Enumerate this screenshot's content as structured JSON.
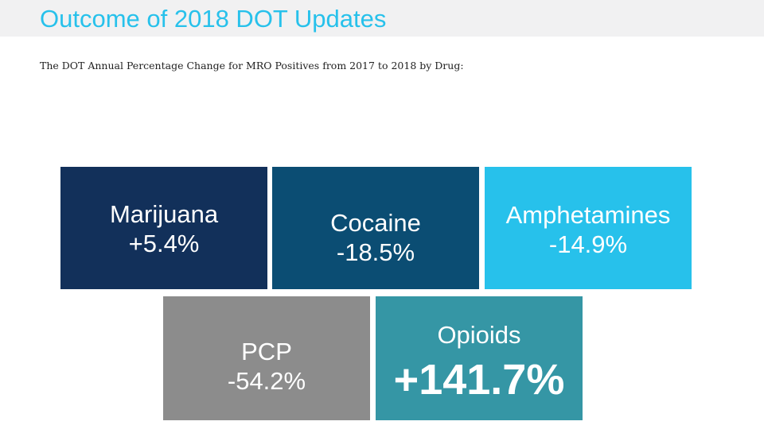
{
  "header": {
    "title": "Outcome of 2018 DOT Updates",
    "subtitle": "The DOT Annual Percentage Change for MRO Positives from 2017 to 2018 by Drug:"
  },
  "tiles": [
    {
      "name": "Marijuana",
      "change": "+5.4%",
      "color": "#12305a"
    },
    {
      "name": "Cocaine",
      "change": "-18.5%",
      "color": "#0b4d73"
    },
    {
      "name": "Amphetamines",
      "change": "-14.9%",
      "color": "#27c1eb"
    },
    {
      "name": "PCP",
      "change": "-54.2%",
      "color": "#8c8c8c"
    },
    {
      "name": "Opioids",
      "change": "+141.7%",
      "color": "#3596a5"
    }
  ],
  "colors": {
    "title": "#27c1eb",
    "title_bar": "#f1f1f2",
    "text_on_tile": "#ffffff"
  }
}
